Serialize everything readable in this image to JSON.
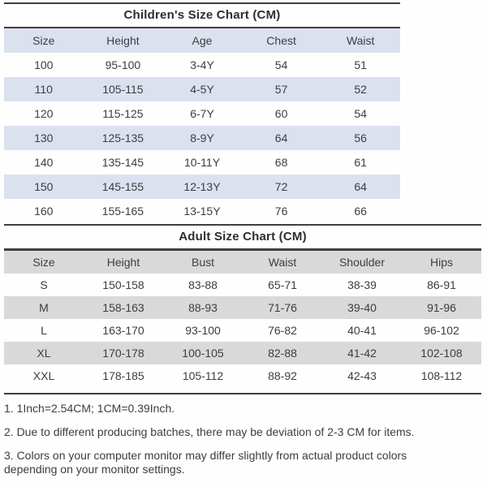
{
  "children_chart": {
    "title": "Children's Size Chart (CM)",
    "columns": [
      "Size",
      "Height",
      "Age",
      "Chest",
      "Waist"
    ],
    "rows": [
      [
        "100",
        "95-100",
        "3-4Y",
        "54",
        "51"
      ],
      [
        "110",
        "105-115",
        "4-5Y",
        "57",
        "52"
      ],
      [
        "120",
        "115-125",
        "6-7Y",
        "60",
        "54"
      ],
      [
        "130",
        "125-135",
        "8-9Y",
        "64",
        "56"
      ],
      [
        "140",
        "135-145",
        "10-11Y",
        "68",
        "61"
      ],
      [
        "150",
        "145-155",
        "12-13Y",
        "72",
        "64"
      ],
      [
        "160",
        "155-165",
        "13-15Y",
        "76",
        "66"
      ]
    ]
  },
  "adult_chart": {
    "title": "Adult Size Chart (CM)",
    "columns": [
      "Size",
      "Height",
      "Bust",
      "Waist",
      "Shoulder",
      "Hips"
    ],
    "rows": [
      [
        "S",
        "150-158",
        "83-88",
        "65-71",
        "38-39",
        "86-91"
      ],
      [
        "M",
        "158-163",
        "88-93",
        "71-76",
        "39-40",
        "91-96"
      ],
      [
        "L",
        "163-170",
        "93-100",
        "76-82",
        "40-41",
        "96-102"
      ],
      [
        "XL",
        "170-178",
        "100-105",
        "82-88",
        "41-42",
        "102-108"
      ],
      [
        "XXL",
        "178-185",
        "105-112",
        "88-92",
        "42-43",
        "108-112"
      ]
    ]
  },
  "notes": [
    "1. 1Inch=2.54CM; 1CM=0.39Inch.",
    "2. Due to different producing batches, there may be deviation of 2-3 CM for items.",
    "3. Colors on your computer monitor may differ slightly from actual product colors depending on your monitor settings."
  ],
  "colors": {
    "children_row_shade": "#dce1f0",
    "adult_row_shade": "#d9d9d9",
    "line": "#3f3f3f",
    "text": "#3d3d3d"
  }
}
